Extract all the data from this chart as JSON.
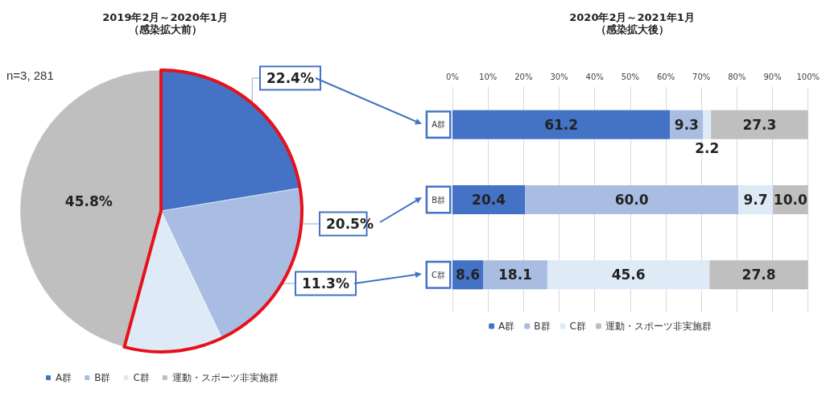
{
  "chart_data": [
    {
      "type": "pie",
      "title": "2019年2月～2020年1月",
      "subtitle": "（感染拡大前）",
      "categories": [
        "A群",
        "B群",
        "C群",
        "運動・スポーツ非実施群"
      ],
      "values": [
        22.4,
        20.5,
        11.3,
        45.8
      ],
      "colors": [
        "#4472c4",
        "#a9bde3",
        "#deebf7",
        "#bfbfbf"
      ],
      "value_labels": [
        "22.4%",
        "20.5%",
        "11.3%",
        "45.8%"
      ],
      "annotations": [
        "n=3, 281"
      ],
      "legend": "bottom left"
    },
    {
      "type": "bar",
      "orientation": "horizontal",
      "stacked": true,
      "title": "2020年2月～2021年1月",
      "subtitle": "（感染拡大後）",
      "categories": [
        "A群",
        "B群",
        "C群"
      ],
      "series": [
        {
          "name": "A群",
          "color": "#4472c4",
          "values": [
            61.2,
            20.4,
            8.6
          ],
          "value_labels": [
            "61.2",
            "20.4",
            "8.6"
          ]
        },
        {
          "name": "B群",
          "color": "#a9bde3",
          "values": [
            9.3,
            60.0,
            18.1
          ],
          "value_labels": [
            "9.3",
            "60.0",
            "18.1"
          ]
        },
        {
          "name": "C群",
          "color": "#deebf7",
          "values": [
            2.2,
            9.7,
            45.6
          ],
          "value_labels": [
            "2.2",
            "9.7",
            "45.6"
          ]
        },
        {
          "name": "運動・スポーツ非実施群",
          "color": "#bfbfbf",
          "values": [
            27.3,
            10.0,
            27.8
          ],
          "value_labels": [
            "27.3",
            "10.0",
            "27.8"
          ]
        }
      ],
      "xlim": [
        0,
        100
      ],
      "xticks": [
        {
          "value": 0,
          "label": "0%"
        },
        {
          "value": 10,
          "label": "10%"
        },
        {
          "value": 20,
          "label": "20%"
        },
        {
          "value": 30,
          "label": "30%"
        },
        {
          "value": 40,
          "label": "40%"
        },
        {
          "value": 50,
          "label": "50%"
        },
        {
          "value": 60,
          "label": "60%"
        },
        {
          "value": 70,
          "label": "70%"
        },
        {
          "value": 80,
          "label": "80%"
        },
        {
          "value": 90,
          "label": "90%"
        },
        {
          "value": 100,
          "label": "100%"
        }
      ],
      "grid": "x",
      "legend": "bottom"
    }
  ]
}
